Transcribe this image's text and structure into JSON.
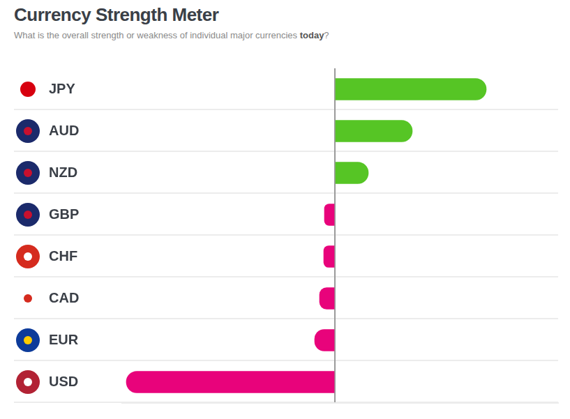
{
  "chart_data": {
    "type": "bar",
    "orientation": "horizontal",
    "title": "Currency Strength Meter",
    "subtitle": "What is the overall strength or weakness of individual major currencies today?",
    "categories": [
      "JPY",
      "AUD",
      "NZD",
      "GBP",
      "CHF",
      "CAD",
      "EUR",
      "USD"
    ],
    "values": [
      217,
      111,
      48,
      -15,
      -16,
      -22,
      -29,
      -299
    ],
    "colors": [
      "#56c525",
      "#56c525",
      "#56c525",
      "#e8037b",
      "#e8037b",
      "#e8037b",
      "#e8037b",
      "#e8037b"
    ],
    "xlim": [
      -305,
      320
    ],
    "xticks": [
      0
    ],
    "grid": true,
    "tick_labels": "y"
  }
}
